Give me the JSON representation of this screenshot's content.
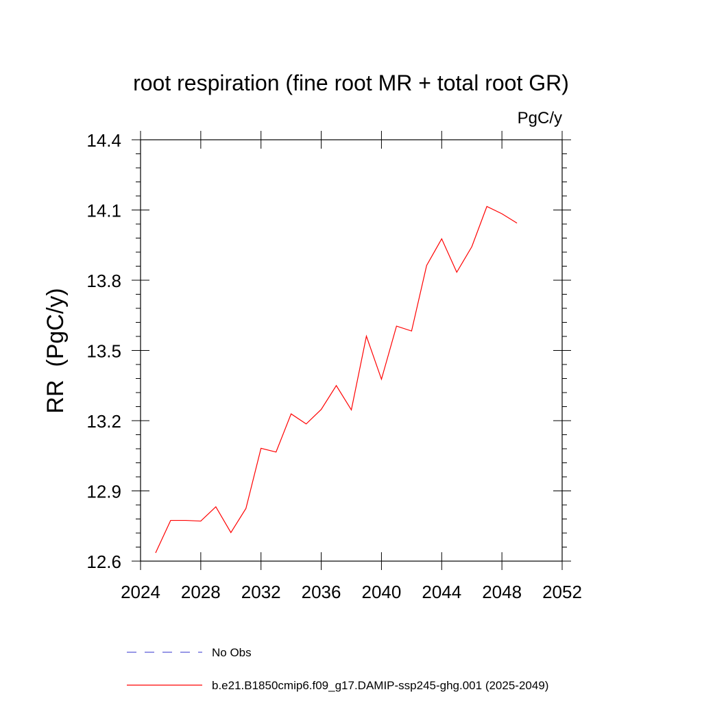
{
  "chart_data": {
    "type": "line",
    "title": "root respiration (fine root MR + total root GR)",
    "units_label": "PgC/y",
    "ylabel": "RR  (PgC/y)",
    "xlabel": "",
    "xlim": [
      2024,
      2052
    ],
    "ylim": [
      12.6,
      14.4
    ],
    "x_ticks": [
      2024,
      2028,
      2032,
      2036,
      2040,
      2044,
      2048,
      2052
    ],
    "x_tick_labels": [
      "2024",
      "2028",
      "2032",
      "2036",
      "2040",
      "2044",
      "2048",
      "2052"
    ],
    "y_ticks": [
      12.6,
      12.9,
      13.2,
      13.5,
      13.8,
      14.1,
      14.4
    ],
    "y_tick_labels": [
      "12.6",
      "12.9",
      "13.2",
      "13.5",
      "13.8",
      "14.1",
      "14.4"
    ],
    "grid": false,
    "legend_position": "bottom",
    "series": [
      {
        "name": "No Obs",
        "color": "#5b5bd6",
        "dash": "dashed",
        "x": [],
        "y": []
      },
      {
        "name": "b.e21.B1850cmip6.f09_g17.DAMIP-ssp245-ghg.001 (2025-2049)",
        "color": "#ff0000",
        "dash": "solid",
        "x": [
          2025,
          2026,
          2027,
          2028,
          2029,
          2030,
          2031,
          2032,
          2033,
          2034,
          2035,
          2036,
          2037,
          2038,
          2039,
          2040,
          2041,
          2042,
          2043,
          2044,
          2045,
          2046,
          2047,
          2048,
          2049
        ],
        "y": [
          12.635,
          12.774,
          12.774,
          12.771,
          12.832,
          12.722,
          12.825,
          13.082,
          13.066,
          13.229,
          13.186,
          13.248,
          13.35,
          13.246,
          13.561,
          13.377,
          13.604,
          13.583,
          13.863,
          13.977,
          13.834,
          13.943,
          14.115,
          14.084,
          14.044
        ]
      }
    ]
  }
}
